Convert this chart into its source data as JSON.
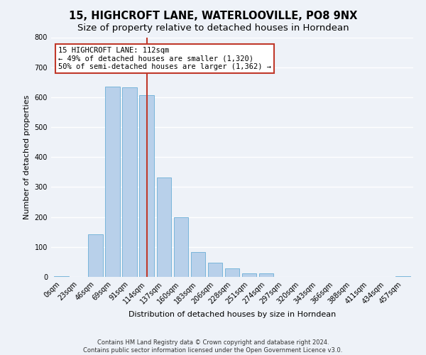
{
  "title": "15, HIGHCROFT LANE, WATERLOOVILLE, PO8 9NX",
  "subtitle": "Size of property relative to detached houses in Horndean",
  "xlabel": "Distribution of detached houses by size in Horndean",
  "ylabel": "Number of detached properties",
  "bar_labels": [
    "0sqm",
    "23sqm",
    "46sqm",
    "69sqm",
    "91sqm",
    "114sqm",
    "137sqm",
    "160sqm",
    "183sqm",
    "206sqm",
    "228sqm",
    "251sqm",
    "274sqm",
    "297sqm",
    "320sqm",
    "343sqm",
    "366sqm",
    "388sqm",
    "411sqm",
    "434sqm",
    "457sqm"
  ],
  "bar_values": [
    3,
    0,
    143,
    635,
    633,
    608,
    333,
    200,
    83,
    47,
    28,
    12,
    12,
    0,
    0,
    0,
    0,
    0,
    0,
    0,
    3
  ],
  "bar_color": "#b8d0ea",
  "bar_edgecolor": "#6aaed6",
  "vline_index": 5,
  "vline_color": "#c0392b",
  "annotation_line1": "15 HIGHCROFT LANE: 112sqm",
  "annotation_line2": "← 49% of detached houses are smaller (1,320)",
  "annotation_line3": "50% of semi-detached houses are larger (1,362) →",
  "annotation_box_edgecolor": "#c0392b",
  "annotation_box_facecolor": "#ffffff",
  "ylim": [
    0,
    800
  ],
  "yticks": [
    0,
    100,
    200,
    300,
    400,
    500,
    600,
    700,
    800
  ],
  "footnote": "Contains HM Land Registry data © Crown copyright and database right 2024.\nContains public sector information licensed under the Open Government Licence v3.0.",
  "background_color": "#eef2f8",
  "grid_color": "#ffffff",
  "title_fontsize": 10.5,
  "subtitle_fontsize": 9.5,
  "axis_label_fontsize": 8,
  "tick_fontsize": 7,
  "footnote_fontsize": 6,
  "annotation_fontsize": 7.5
}
